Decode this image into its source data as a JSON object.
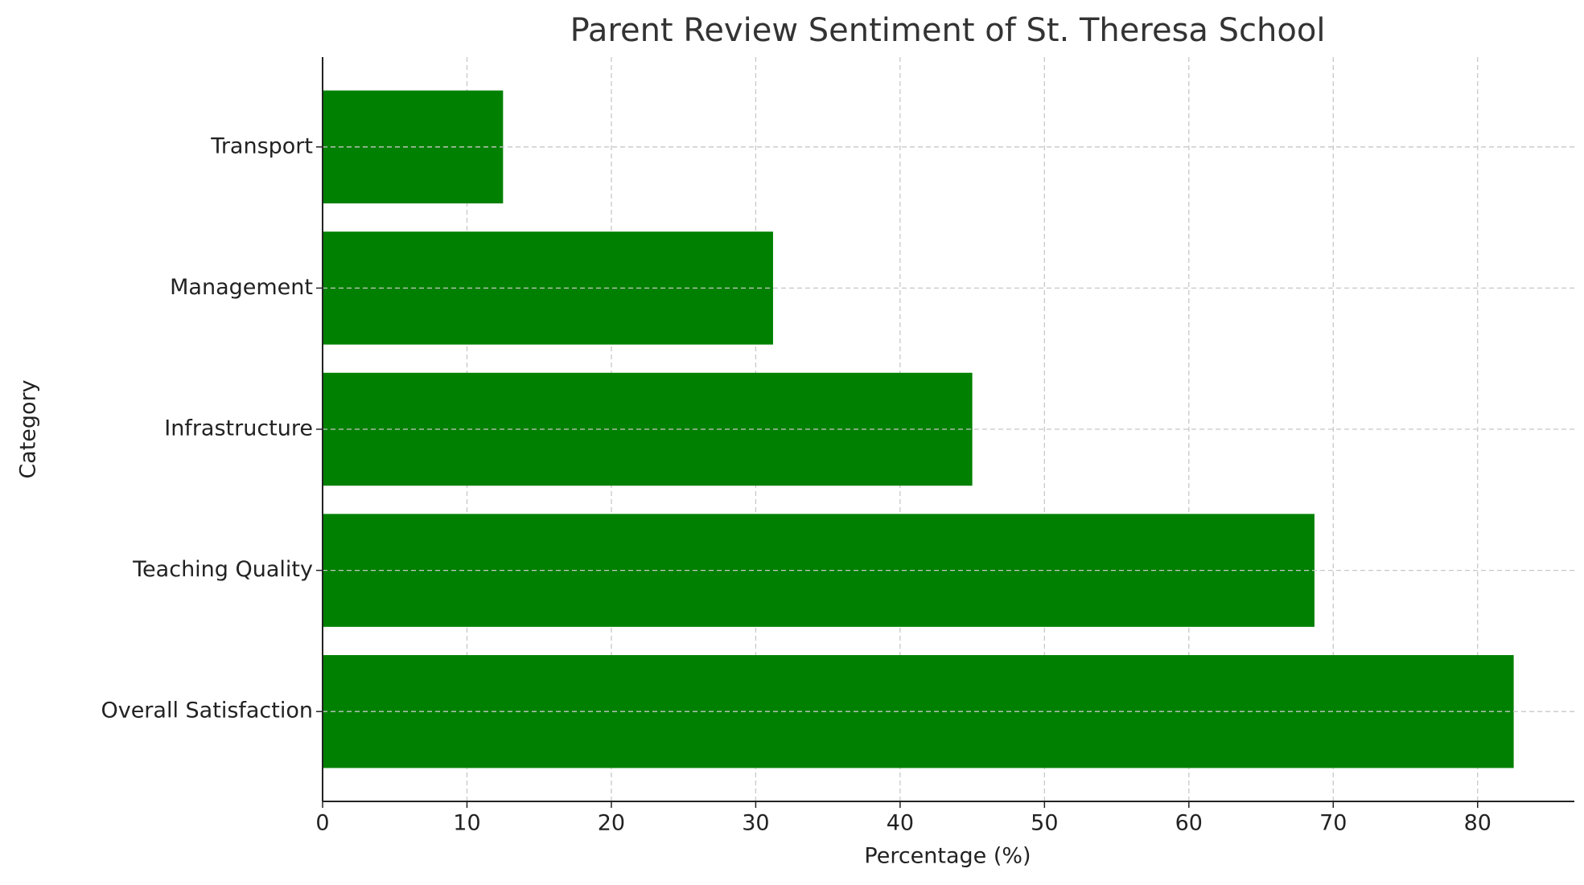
{
  "chart_data": {
    "type": "barh",
    "title": "Parent Review Sentiment of St. Theresa School",
    "x_label": "Percentage (%)",
    "y_label": "Category",
    "categories": [
      "Overall Satisfaction",
      "Teaching Quality",
      "Infrastructure",
      "Management",
      "Transport"
    ],
    "values": [
      82.5,
      68.7,
      45.0,
      31.2,
      12.5
    ],
    "color": "#008000",
    "xlim": [
      0,
      86.7
    ],
    "xticks": [
      0,
      10,
      20,
      30,
      40,
      50,
      60,
      70,
      80
    ],
    "grid": true
  }
}
